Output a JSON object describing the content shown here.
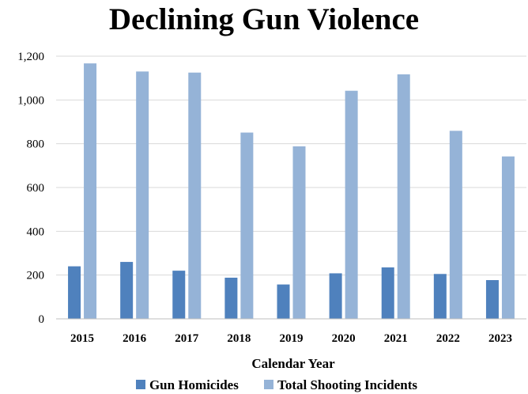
{
  "chart_data": {
    "type": "bar",
    "title": "Declining Gun Violence",
    "xlabel": "Calendar Year",
    "ylabel": "",
    "categories": [
      "2015",
      "2016",
      "2017",
      "2018",
      "2019",
      "2020",
      "2021",
      "2022",
      "2023"
    ],
    "series": [
      {
        "name": "Gun Homicides",
        "color": "#4f81bd",
        "values": [
          240,
          260,
          220,
          188,
          157,
          208,
          235,
          205,
          177
        ]
      },
      {
        "name": "Total Shooting Incidents",
        "color": "#95b3d7",
        "values": [
          1167,
          1130,
          1125,
          851,
          788,
          1042,
          1117,
          859,
          742
        ]
      }
    ],
    "ylim": [
      0,
      1200
    ],
    "yticks": [
      "0",
      "200",
      "400",
      "600",
      "800",
      "1,000",
      "1,200"
    ],
    "ytick_values": [
      0,
      200,
      400,
      600,
      800,
      1000,
      1200
    ],
    "grid": true,
    "legend_position": "bottom"
  }
}
